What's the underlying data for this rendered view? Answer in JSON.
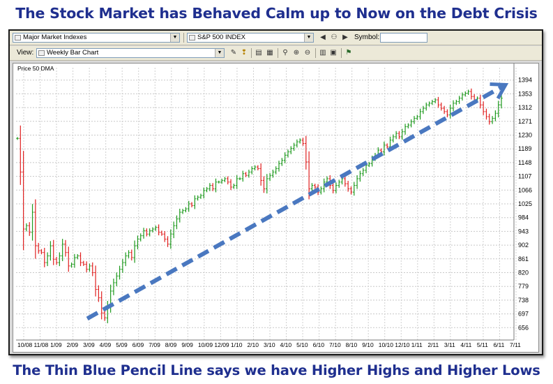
{
  "headline": "The Stock Market has Behaved Calm up to Now on the Debt Crisis",
  "caption": "The Thin Blue Pencil Line says we have Higher Highs and Higher Lows",
  "toolbar": {
    "list_select": "Major Market Indexes",
    "symbol_select": "S&P 500 INDEX",
    "symbol_label": "Symbol:",
    "symbol_value": "",
    "view_label": "View:",
    "view_select": "Weekly Bar Chart"
  },
  "icons": {
    "prev": "chevron-left-icon",
    "next": "chevron-right-icon",
    "find": "binoculars-icon",
    "zoom_in": "zoom-in-icon",
    "zoom_out": "zoom-out-icon",
    "zoom": "magnifier-icon"
  },
  "chart_data": {
    "type": "bar",
    "subtype": "weekly OHLC price bars",
    "title": "",
    "legend": "Price  50 DMA",
    "xlabel": "",
    "ylabel": "",
    "ylim": [
      640,
      1410
    ],
    "y_ticks": [
      1394,
      1353,
      1312,
      1271,
      1230,
      1189,
      1148,
      1107,
      1066,
      1025,
      984,
      943,
      902,
      861,
      820,
      779,
      738,
      697,
      656
    ],
    "x_tick_labels": [
      "10/08",
      "11/08",
      "1/09",
      "2/09",
      "3/09",
      "4/09",
      "5/09",
      "6/09",
      "7/09",
      "8/09",
      "9/09",
      "10/09",
      "12/09",
      "1/10",
      "2/10",
      "3/10",
      "4/10",
      "5/10",
      "6/10",
      "7/10",
      "8/10",
      "9/10",
      "10/10",
      "12/10",
      "1/11",
      "2/11",
      "3/11",
      "4/11",
      "5/11",
      "6/11",
      "7/11"
    ],
    "grid": true,
    "up_color": "#1e9a1e",
    "down_color": "#e02020",
    "trendline": {
      "label": "Thin Blue Pencil Line",
      "color": "#4a78c0",
      "style": "dashed",
      "start": {
        "x": "3/09",
        "y": 683
      },
      "end": {
        "x": "7/11",
        "y": 1380
      },
      "arrow": true
    },
    "series": [
      {
        "weekly_values": [
          1220,
          1120,
          950,
          960,
          940,
          1000,
          900,
          885,
          880,
          850,
          870,
          900,
          860,
          850,
          870,
          905,
          880,
          840,
          845,
          865,
          870,
          850,
          845,
          830,
          840,
          820,
          770,
          745,
          700,
          685,
          720,
          765,
          790,
          810,
          830,
          850,
          870,
          880,
          865,
          900,
          920,
          930,
          945,
          935,
          945,
          950,
          955,
          940,
          935,
          920,
          905,
          935,
          960,
          980,
          1000,
          1005,
          1010,
          1025,
          1020,
          1040,
          1045,
          1050,
          1065,
          1070,
          1080,
          1070,
          1090,
          1090,
          1095,
          1100,
          1090,
          1075,
          1080,
          1100,
          1100,
          1115,
          1110,
          1120,
          1130,
          1135,
          1130,
          1095,
          1070,
          1100,
          1110,
          1120,
          1130,
          1145,
          1155,
          1170,
          1180,
          1190,
          1200,
          1210,
          1215,
          1205,
          1150,
          1070,
          1080,
          1075,
          1060,
          1070,
          1090,
          1100,
          1080,
          1065,
          1080,
          1090,
          1100,
          1085,
          1070,
          1060,
          1080,
          1100,
          1115,
          1125,
          1140,
          1145,
          1160,
          1170,
          1185,
          1180,
          1200,
          1195,
          1215,
          1225,
          1235,
          1225,
          1240,
          1255,
          1260,
          1270,
          1280,
          1285,
          1300,
          1310,
          1320,
          1325,
          1330,
          1335,
          1320,
          1310,
          1300,
          1290,
          1310,
          1325,
          1330,
          1340,
          1350,
          1355,
          1360,
          1345,
          1335,
          1340,
          1320,
          1300,
          1285,
          1270,
          1280,
          1295,
          1320,
          1340
        ]
      }
    ]
  }
}
